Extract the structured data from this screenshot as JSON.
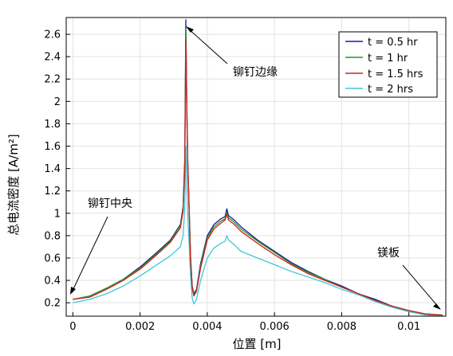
{
  "chart_data": {
    "type": "line",
    "title": "",
    "xlabel": "位置 [m]",
    "ylabel": "总电流密度 [A/m²]",
    "xlim": [
      -0.0002,
      0.0111
    ],
    "ylim": [
      0.08,
      2.75
    ],
    "xticks": [
      0,
      0.002,
      0.004,
      0.006,
      0.008,
      0.01
    ],
    "xtick_labels": [
      "0",
      "0.002",
      "0.004",
      "0.006",
      "0.008",
      "0.01"
    ],
    "yticks": [
      0.2,
      0.4,
      0.6,
      0.8,
      1.0,
      1.2,
      1.4,
      1.6,
      1.8,
      2.0,
      2.2,
      2.4,
      2.6
    ],
    "ytick_labels": [
      "0.2",
      "0.4",
      "0.6",
      "0.8",
      "1",
      "1.2",
      "1.4",
      "1.6",
      "1.8",
      "2",
      "2.2",
      "2.4",
      "2.6"
    ],
    "grid": true,
    "legend_position": "top-right",
    "series": [
      {
        "name": "t = 0.5 hr",
        "color": "#1a1aa0",
        "points": [
          [
            0.0,
            0.23
          ],
          [
            0.0005,
            0.26
          ],
          [
            0.001,
            0.33
          ],
          [
            0.0015,
            0.41
          ],
          [
            0.002,
            0.52
          ],
          [
            0.0025,
            0.65
          ],
          [
            0.0029,
            0.76
          ],
          [
            0.0032,
            0.9
          ],
          [
            0.00328,
            1.06
          ],
          [
            0.00333,
            1.5
          ],
          [
            0.00336,
            2.73
          ],
          [
            0.00339,
            2.0
          ],
          [
            0.00342,
            1.45
          ],
          [
            0.00346,
            1.05
          ],
          [
            0.0035,
            0.62
          ],
          [
            0.00355,
            0.35
          ],
          [
            0.0036,
            0.28
          ],
          [
            0.00368,
            0.32
          ],
          [
            0.0038,
            0.55
          ],
          [
            0.004,
            0.8
          ],
          [
            0.0042,
            0.9
          ],
          [
            0.0044,
            0.95
          ],
          [
            0.00453,
            0.97
          ],
          [
            0.00458,
            1.04
          ],
          [
            0.00463,
            0.98
          ],
          [
            0.0048,
            0.94
          ],
          [
            0.005,
            0.88
          ],
          [
            0.0055,
            0.76
          ],
          [
            0.006,
            0.66
          ],
          [
            0.0065,
            0.56
          ],
          [
            0.007,
            0.48
          ],
          [
            0.0075,
            0.41
          ],
          [
            0.008,
            0.35
          ],
          [
            0.0085,
            0.28
          ],
          [
            0.009,
            0.23
          ],
          [
            0.0095,
            0.17
          ],
          [
            0.01,
            0.13
          ],
          [
            0.0105,
            0.1
          ],
          [
            0.011,
            0.09
          ]
        ]
      },
      {
        "name": "t = 1 hr",
        "color": "#1e9a1e",
        "points": [
          [
            0.0,
            0.23
          ],
          [
            0.0005,
            0.26
          ],
          [
            0.001,
            0.33
          ],
          [
            0.0015,
            0.41
          ],
          [
            0.002,
            0.51
          ],
          [
            0.0025,
            0.64
          ],
          [
            0.0029,
            0.75
          ],
          [
            0.0032,
            0.89
          ],
          [
            0.00328,
            1.04
          ],
          [
            0.00333,
            1.46
          ],
          [
            0.00336,
            2.65
          ],
          [
            0.00339,
            1.95
          ],
          [
            0.00342,
            1.42
          ],
          [
            0.00346,
            1.03
          ],
          [
            0.0035,
            0.6
          ],
          [
            0.00355,
            0.34
          ],
          [
            0.0036,
            0.27
          ],
          [
            0.00368,
            0.31
          ],
          [
            0.0038,
            0.53
          ],
          [
            0.004,
            0.78
          ],
          [
            0.0042,
            0.88
          ],
          [
            0.0044,
            0.93
          ],
          [
            0.00453,
            0.95
          ],
          [
            0.00458,
            1.01
          ],
          [
            0.00463,
            0.96
          ],
          [
            0.0048,
            0.92
          ],
          [
            0.005,
            0.86
          ],
          [
            0.0055,
            0.75
          ],
          [
            0.006,
            0.65
          ],
          [
            0.0065,
            0.55
          ],
          [
            0.007,
            0.47
          ],
          [
            0.0075,
            0.41
          ],
          [
            0.008,
            0.34
          ],
          [
            0.0085,
            0.28
          ],
          [
            0.009,
            0.22
          ],
          [
            0.0095,
            0.17
          ],
          [
            0.01,
            0.13
          ],
          [
            0.0105,
            0.1
          ],
          [
            0.011,
            0.09
          ]
        ]
      },
      {
        "name": "t = 1.5 hrs",
        "color": "#d42020",
        "points": [
          [
            0.0,
            0.23
          ],
          [
            0.0005,
            0.25
          ],
          [
            0.001,
            0.32
          ],
          [
            0.0015,
            0.4
          ],
          [
            0.002,
            0.5
          ],
          [
            0.0025,
            0.63
          ],
          [
            0.0029,
            0.74
          ],
          [
            0.0032,
            0.87
          ],
          [
            0.00328,
            1.02
          ],
          [
            0.00333,
            1.4
          ],
          [
            0.00336,
            2.55
          ],
          [
            0.00339,
            1.9
          ],
          [
            0.00342,
            1.4
          ],
          [
            0.00346,
            1.01
          ],
          [
            0.0035,
            0.58
          ],
          [
            0.00355,
            0.33
          ],
          [
            0.0036,
            0.26
          ],
          [
            0.00368,
            0.3
          ],
          [
            0.0038,
            0.51
          ],
          [
            0.004,
            0.76
          ],
          [
            0.0042,
            0.86
          ],
          [
            0.0044,
            0.91
          ],
          [
            0.00453,
            0.94
          ],
          [
            0.00458,
            0.99
          ],
          [
            0.00463,
            0.94
          ],
          [
            0.0048,
            0.9
          ],
          [
            0.005,
            0.84
          ],
          [
            0.0055,
            0.73
          ],
          [
            0.006,
            0.63
          ],
          [
            0.0065,
            0.54
          ],
          [
            0.007,
            0.46
          ],
          [
            0.0075,
            0.4
          ],
          [
            0.008,
            0.34
          ],
          [
            0.0085,
            0.28
          ],
          [
            0.009,
            0.22
          ],
          [
            0.0095,
            0.17
          ],
          [
            0.01,
            0.13
          ],
          [
            0.0105,
            0.1
          ],
          [
            0.011,
            0.09
          ]
        ]
      },
      {
        "name": "t = 2 hrs",
        "color": "#3ec8d8",
        "points": [
          [
            0.0,
            0.2
          ],
          [
            0.0005,
            0.23
          ],
          [
            0.001,
            0.28
          ],
          [
            0.0015,
            0.35
          ],
          [
            0.002,
            0.44
          ],
          [
            0.0025,
            0.54
          ],
          [
            0.0029,
            0.62
          ],
          [
            0.0032,
            0.7
          ],
          [
            0.00328,
            0.8
          ],
          [
            0.00333,
            1.05
          ],
          [
            0.00336,
            1.6
          ],
          [
            0.00339,
            1.25
          ],
          [
            0.00342,
            0.95
          ],
          [
            0.00346,
            0.72
          ],
          [
            0.0035,
            0.45
          ],
          [
            0.00355,
            0.24
          ],
          [
            0.0036,
            0.19
          ],
          [
            0.00368,
            0.23
          ],
          [
            0.0038,
            0.4
          ],
          [
            0.004,
            0.6
          ],
          [
            0.0042,
            0.69
          ],
          [
            0.0044,
            0.73
          ],
          [
            0.00453,
            0.75
          ],
          [
            0.00458,
            0.8
          ],
          [
            0.00463,
            0.76
          ],
          [
            0.0048,
            0.72
          ],
          [
            0.005,
            0.66
          ],
          [
            0.0055,
            0.6
          ],
          [
            0.006,
            0.54
          ],
          [
            0.0065,
            0.48
          ],
          [
            0.007,
            0.43
          ],
          [
            0.0075,
            0.38
          ],
          [
            0.008,
            0.32
          ],
          [
            0.0085,
            0.27
          ],
          [
            0.009,
            0.21
          ],
          [
            0.0095,
            0.16
          ],
          [
            0.01,
            0.12
          ],
          [
            0.0105,
            0.09
          ],
          [
            0.011,
            0.08
          ]
        ]
      }
    ],
    "annotations": [
      {
        "text": "铆钉边缘",
        "arrow_to": [
          0.00336,
          2.72
        ]
      },
      {
        "text": "铆钉中央",
        "arrow_to": [
          0.0,
          0.22
        ]
      },
      {
        "text": "镁板",
        "arrow_to": [
          0.011,
          0.09
        ]
      }
    ]
  }
}
